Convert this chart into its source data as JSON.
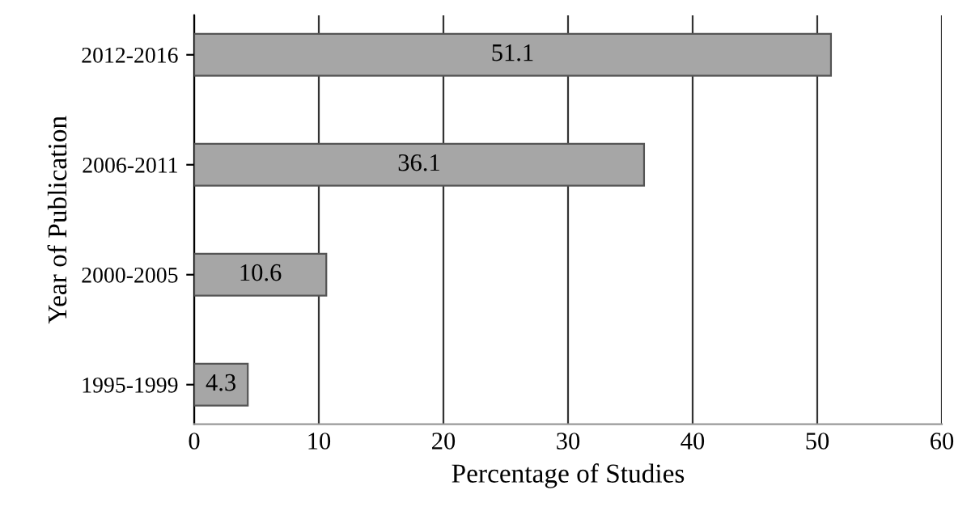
{
  "chart_data": {
    "type": "bar",
    "orientation": "horizontal",
    "xlabel": "Percentage of Studies",
    "ylabel": "Year of Publication",
    "categories": [
      "2012-2016",
      "2006-2011",
      "2000-2005",
      "1995-1999"
    ],
    "values": [
      51.1,
      36.1,
      10.6,
      4.3
    ],
    "color": "#a6a6a6",
    "xlim": [
      0,
      60
    ],
    "xticks": [
      0,
      10,
      20,
      30,
      40,
      50,
      60
    ],
    "grid": "x",
    "data_labels": true
  }
}
